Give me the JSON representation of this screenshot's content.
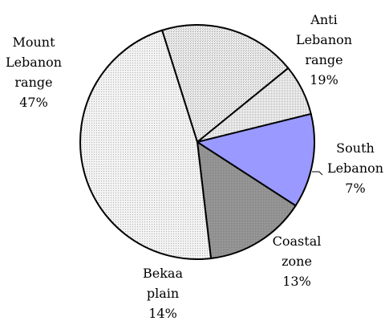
{
  "chart_data": {
    "type": "pie",
    "title": "",
    "categories": [
      "Anti Lebanon range",
      "South Lebanon",
      "Coastal zone",
      "Bekaa plain",
      "Mount Lebanon range"
    ],
    "values": [
      19,
      7,
      13,
      14,
      47
    ],
    "unit": "%",
    "colors": [
      "#e8e8e8",
      "#f0f0f0",
      "#9999ff",
      "#999999",
      "#e0e0e0"
    ],
    "labels": [
      {
        "lines": [
          "Anti",
          "Lebanon",
          "range"
        ],
        "value": "19%"
      },
      {
        "lines": [
          "South",
          "Lebanon"
        ],
        "value": "7%"
      },
      {
        "lines": [
          "Coastal",
          "zone"
        ],
        "value": "13%"
      },
      {
        "lines": [
          "Bekaa",
          "plain"
        ],
        "value": "14%"
      },
      {
        "lines": [
          "Mount",
          "Lebanon",
          "range"
        ],
        "value": "47%"
      }
    ],
    "legend": "none"
  }
}
